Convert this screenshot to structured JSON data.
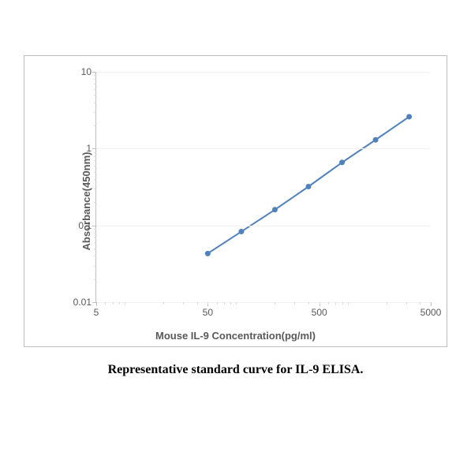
{
  "caption": {
    "text": "Representative standard curve for IL-9 ELISA.",
    "fontsize": 16,
    "font_family": "Times New Roman",
    "font_weight": "bold",
    "color": "#000000"
  },
  "chart": {
    "type": "line",
    "background_color": "#ffffff",
    "border_color": "#bfbfbf",
    "grid_color": "#f2f2f2",
    "axis_color": "#bfbfbf",
    "tick_label_color": "#595959",
    "tick_label_fontsize": 12,
    "label_color": "#595959",
    "label_fontsize": 13,
    "label_font_weight": "bold",
    "xlabel": "Mouse IL-9 Concentration(pg/ml)",
    "ylabel": "Absorbance(450nm)",
    "xscale": "log",
    "yscale": "log",
    "xlim": [
      5,
      5000
    ],
    "ylim": [
      0.01,
      10
    ],
    "xticks": [
      5,
      50,
      500,
      5000
    ],
    "xtick_labels": [
      "5",
      "50",
      "500",
      "5000"
    ],
    "yticks": [
      0.01,
      0.1,
      1,
      10
    ],
    "ytick_labels": [
      "0.01",
      "0.1",
      "1",
      "10"
    ],
    "minor_ticks": true,
    "series": [
      {
        "name": "standard-curve",
        "x": [
          50,
          100,
          200,
          400,
          800,
          1600,
          3200
        ],
        "y": [
          0.043,
          0.083,
          0.16,
          0.32,
          0.66,
          1.3,
          2.6
        ],
        "line_color": "#4f81bd",
        "line_width": 2,
        "marker": "circle",
        "marker_size": 7,
        "marker_color": "#4f81bd"
      }
    ]
  }
}
